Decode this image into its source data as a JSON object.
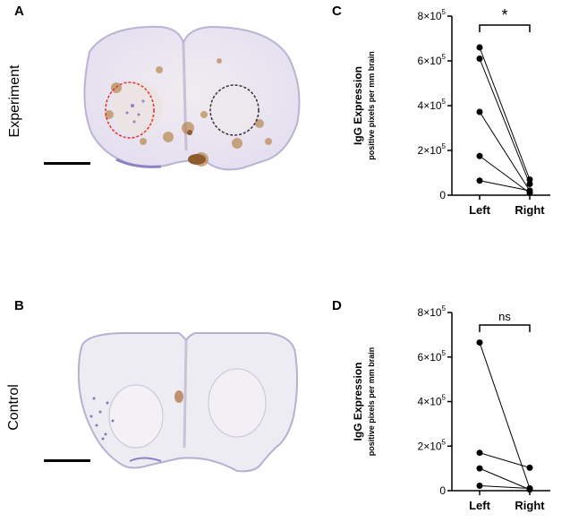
{
  "panels": {
    "A": {
      "letter": "A",
      "row_label": "Experiment"
    },
    "B": {
      "letter": "B",
      "row_label": "Control"
    },
    "C": {
      "letter": "C"
    },
    "D": {
      "letter": "D"
    }
  },
  "charts": {
    "ytick_labels": [
      {
        "v": 0,
        "base": "0",
        "exp": ""
      },
      {
        "v": 200000,
        "base": "2×10",
        "exp": "5"
      },
      {
        "v": 400000,
        "base": "4×10",
        "exp": "5"
      },
      {
        "v": 600000,
        "base": "6×10",
        "exp": "5"
      },
      {
        "v": 800000,
        "base": "8×10",
        "exp": "5"
      }
    ],
    "ylabel_main": "IgG Expression",
    "ylabel_sub": "positive pixels per mm brain"
  },
  "chart_data": [
    {
      "type": "scatter",
      "panel": "C",
      "categories": [
        "Left",
        "Right"
      ],
      "ylim": [
        0,
        800000
      ],
      "ylabel": "IgG Expression positive pixels per mm brain",
      "pairs": [
        {
          "left": 660000,
          "right": 70000
        },
        {
          "left": 610000,
          "right": 50000
        },
        {
          "left": 372000,
          "right": 20000
        },
        {
          "left": 175000,
          "right": 10000
        },
        {
          "left": 65000,
          "right": 20000
        }
      ],
      "significance": "*"
    },
    {
      "type": "scatter",
      "panel": "D",
      "categories": [
        "Left",
        "Right"
      ],
      "ylim": [
        0,
        800000
      ],
      "ylabel": "IgG Expression positive pixels per mm brain",
      "pairs": [
        {
          "left": 665000,
          "right": 10000
        },
        {
          "left": 170000,
          "right": 103000
        },
        {
          "left": 100000,
          "right": 5000
        },
        {
          "left": 22000,
          "right": 10000
        }
      ],
      "significance": "ns"
    }
  ]
}
